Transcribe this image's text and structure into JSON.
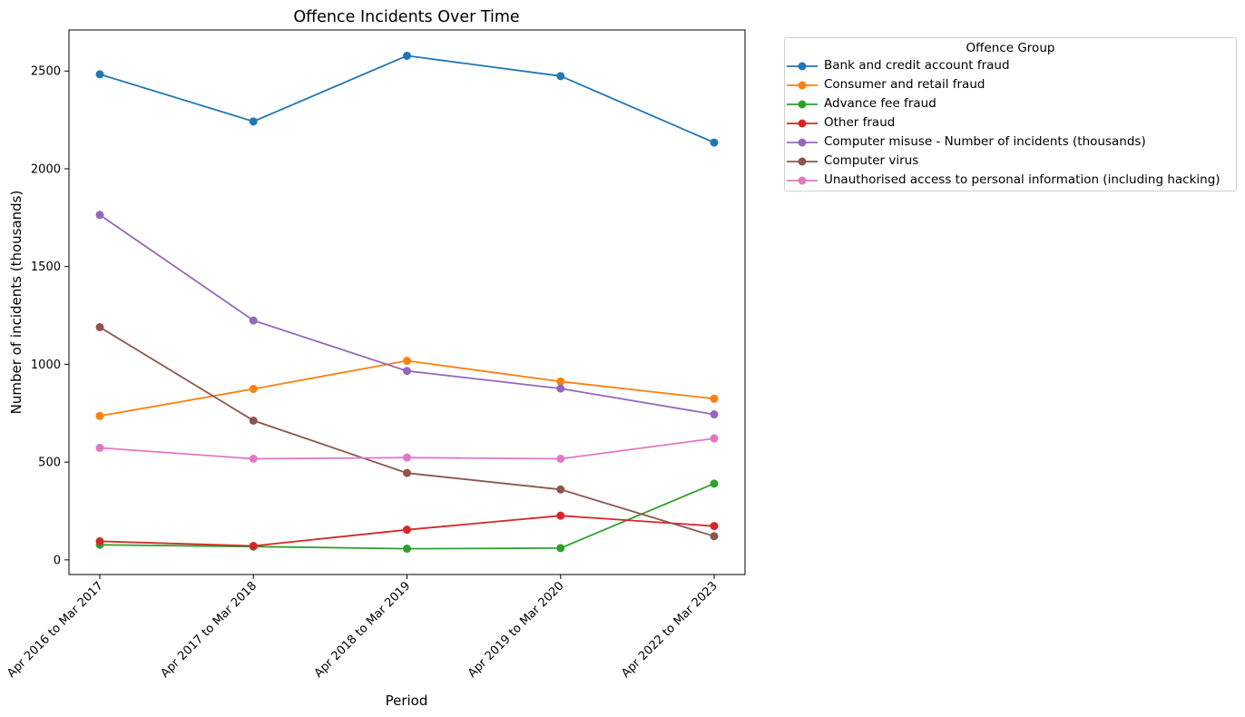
{
  "chart_data": {
    "type": "line",
    "title": "Offence Incidents Over Time",
    "xlabel": "Period",
    "ylabel": "Number of incidents (thousands)",
    "categories": [
      "Apr 2016 to Mar 2017",
      "Apr 2017 to Mar 2018",
      "Apr 2018 to Mar 2019",
      "Apr 2019 to Mar 2020",
      "Apr 2022 to Mar 2023"
    ],
    "ylim": [
      -75,
      2710
    ],
    "yticks": [
      0,
      500,
      1000,
      1500,
      2000,
      2500
    ],
    "grid": false,
    "legend_title": "Offence Group",
    "legend_placement": "outside-top-right",
    "series": [
      {
        "name": "Bank and credit account fraud",
        "color": "#1f77b4",
        "values": [
          2483,
          2242,
          2578,
          2474,
          2134
        ]
      },
      {
        "name": "Consumer and retail fraud",
        "color": "#ff7f0e",
        "values": [
          736,
          874,
          1018,
          912,
          824
        ]
      },
      {
        "name": "Advance fee fraud",
        "color": "#2ca02c",
        "values": [
          77,
          68,
          57,
          60,
          390
        ]
      },
      {
        "name": "Other fraud",
        "color": "#d62728",
        "values": [
          95,
          71,
          154,
          226,
          173
        ]
      },
      {
        "name": "Computer misuse - Number of incidents (thousands)",
        "color": "#9467bd",
        "values": [
          1764,
          1224,
          966,
          876,
          744
        ]
      },
      {
        "name": "Computer virus",
        "color": "#8c564b",
        "values": [
          1190,
          712,
          444,
          360,
          121
        ]
      },
      {
        "name": "Unauthorised access to personal information (including hacking)",
        "color": "#e377c2",
        "values": [
          573,
          517,
          523,
          517,
          621
        ]
      }
    ]
  }
}
